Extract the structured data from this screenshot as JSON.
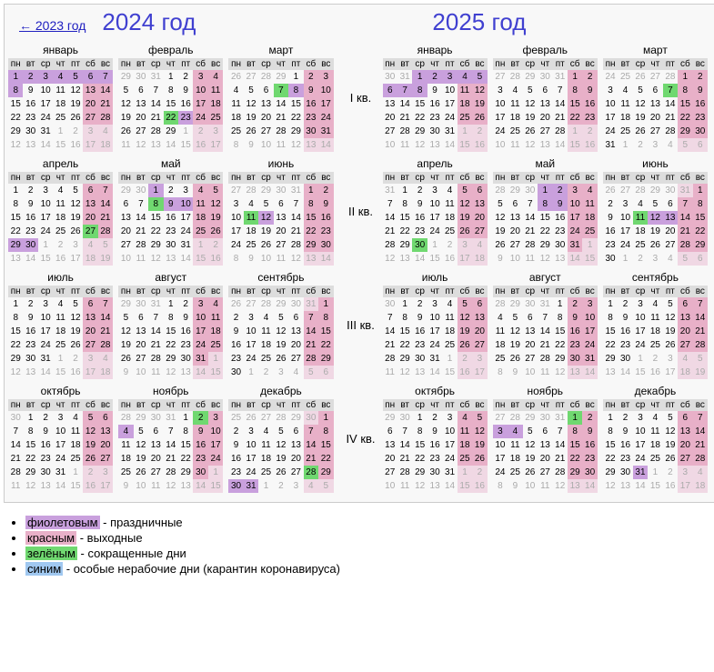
{
  "prev_link": "← 2023 год",
  "year_2024": "2024 год",
  "year_2025": "2025 год",
  "weekdays": [
    "пн",
    "вт",
    "ср",
    "чт",
    "пт",
    "сб",
    "вс"
  ],
  "quarters": [
    "I кв.",
    "II кв.",
    "III кв.",
    "IV кв."
  ],
  "months_ru": [
    "январь",
    "февраль",
    "март",
    "апрель",
    "май",
    "июнь",
    "июль",
    "август",
    "сентябрь",
    "октябрь",
    "ноябрь",
    "декабрь"
  ],
  "legend": {
    "violet_word": "фиолетовым",
    "violet_text": " - праздничные",
    "red_word": "красным",
    "red_text": " - выходные",
    "green_word": "зелёным",
    "green_text": " - сокращенные дни",
    "blue_word": "синим",
    "blue_text": " - особые нерабочие дни (карантин коронавируса)"
  },
  "colors": {
    "holiday": "#c9a0dd",
    "weekend": "#e8b0c8",
    "shortened": "#70d870",
    "special": "#a0c8f0",
    "header_bg": "#dddddd",
    "adjacent": "#aaaaaa",
    "year_title": "#4040d0",
    "link": "#2020c0"
  },
  "calendar": {
    "2024": {
      "1": {
        "days": 31,
        "start": 1,
        "hol": [
          1,
          2,
          3,
          4,
          5,
          6,
          7,
          8
        ],
        "sht": []
      },
      "2": {
        "days": 29,
        "start": 4,
        "hol": [
          23
        ],
        "sht": [
          22
        ]
      },
      "3": {
        "days": 31,
        "start": 5,
        "hol": [
          8
        ],
        "sht": [
          7
        ]
      },
      "4": {
        "days": 30,
        "start": 1,
        "hol": [
          29,
          30
        ],
        "sht": [
          27
        ]
      },
      "5": {
        "days": 31,
        "start": 3,
        "hol": [
          1,
          9,
          10
        ],
        "sht": [
          8
        ]
      },
      "6": {
        "days": 30,
        "start": 6,
        "hol": [
          12
        ],
        "sht": [
          11
        ]
      },
      "7": {
        "days": 31,
        "start": 1,
        "hol": [],
        "sht": []
      },
      "8": {
        "days": 31,
        "start": 4,
        "hol": [],
        "sht": []
      },
      "9": {
        "days": 30,
        "start": 7,
        "hol": [],
        "sht": []
      },
      "10": {
        "days": 31,
        "start": 2,
        "hol": [],
        "sht": []
      },
      "11": {
        "days": 30,
        "start": 5,
        "hol": [
          4
        ],
        "sht": [
          2
        ]
      },
      "12": {
        "days": 31,
        "start": 7,
        "hol": [
          30,
          31
        ],
        "sht": [
          28
        ]
      }
    },
    "2025": {
      "1": {
        "days": 31,
        "start": 3,
        "hol": [
          1,
          2,
          3,
          4,
          5,
          6,
          7,
          8
        ],
        "sht": []
      },
      "2": {
        "days": 28,
        "start": 6,
        "hol": [],
        "sht": []
      },
      "3": {
        "days": 31,
        "start": 6,
        "hol": [],
        "sht": [
          7
        ]
      },
      "4": {
        "days": 30,
        "start": 2,
        "hol": [],
        "sht": [
          30
        ]
      },
      "5": {
        "days": 31,
        "start": 4,
        "hol": [
          1,
          2,
          8,
          9
        ],
        "sht": []
      },
      "6": {
        "days": 30,
        "start": 7,
        "hol": [
          12,
          13
        ],
        "sht": [
          11
        ]
      },
      "7": {
        "days": 31,
        "start": 2,
        "hol": [],
        "sht": []
      },
      "8": {
        "days": 31,
        "start": 5,
        "hol": [],
        "sht": []
      },
      "9": {
        "days": 30,
        "start": 1,
        "hol": [],
        "sht": []
      },
      "10": {
        "days": 31,
        "start": 3,
        "hol": [],
        "sht": []
      },
      "11": {
        "days": 30,
        "start": 6,
        "hol": [
          3,
          4
        ],
        "sht": [
          1
        ]
      },
      "12": {
        "days": 31,
        "start": 1,
        "hol": [
          31
        ],
        "sht": []
      }
    }
  }
}
